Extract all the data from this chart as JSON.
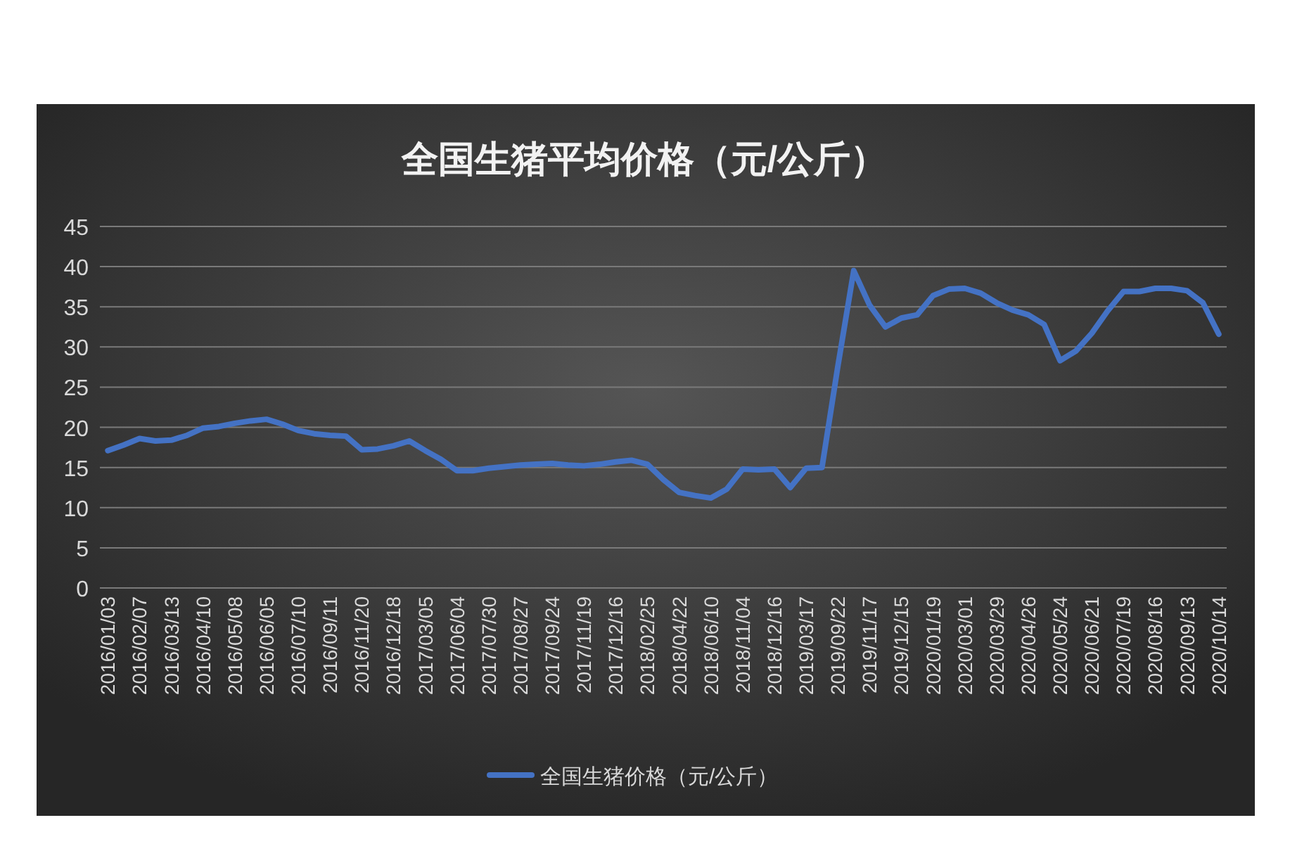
{
  "chart_data": {
    "type": "line",
    "title": "全国生猪平均价格（元/公斤）",
    "categories": [
      "2016/01/03",
      null,
      "2016/02/07",
      null,
      "2016/03/13",
      null,
      "2016/04/10",
      null,
      "2016/05/08",
      null,
      "2016/06/05",
      null,
      "2016/07/10",
      null,
      "2016/09/11",
      null,
      "2016/11/20",
      null,
      "2016/12/18",
      null,
      "2017/03/05",
      null,
      "2017/06/04",
      null,
      "2017/07/30",
      null,
      "2017/08/27",
      null,
      "2017/09/24",
      null,
      "2017/11/19",
      null,
      "2017/12/16",
      null,
      "2018/02/25",
      null,
      "2018/04/22",
      null,
      "2018/06/10",
      null,
      "2018/11/04",
      null,
      "2018/12/16",
      null,
      "2019/03/17",
      null,
      "2019/09/22",
      null,
      "2019/11/17",
      null,
      "2019/12/15",
      null,
      "2020/01/19",
      null,
      "2020/03/01",
      null,
      "2020/03/29",
      null,
      "2020/04/26",
      null,
      "2020/05/24",
      null,
      "2020/06/21",
      null,
      "2020/07/19",
      null,
      "2020/08/16",
      null,
      "2020/09/13",
      null,
      "2020/10/14"
    ],
    "series": [
      {
        "name": "全国生猪价格（元/公斤）",
        "color": "#4472c4",
        "values": [
          17.1,
          17.8,
          18.6,
          18.3,
          18.4,
          19.0,
          19.9,
          20.1,
          20.5,
          20.8,
          21.0,
          20.4,
          19.6,
          19.2,
          19.0,
          18.9,
          17.2,
          17.3,
          17.7,
          18.3,
          17.1,
          16.0,
          14.6,
          14.6,
          14.9,
          15.1,
          15.3,
          15.4,
          15.5,
          15.3,
          15.2,
          15.4,
          15.7,
          15.9,
          15.4,
          13.5,
          11.9,
          11.5,
          11.2,
          12.3,
          14.8,
          14.7,
          14.8,
          12.5,
          14.9,
          15.0,
          27.6,
          39.5,
          35.2,
          32.5,
          33.6,
          34.0,
          36.4,
          37.2,
          37.3,
          36.7,
          35.5,
          34.6,
          34.0,
          32.8,
          28.3,
          29.5,
          31.7,
          34.5,
          36.9,
          36.9,
          37.3,
          37.3,
          37.0,
          35.5,
          31.6
        ]
      }
    ],
    "ylim": [
      0,
      45
    ],
    "yticks": [
      0,
      5,
      10,
      15,
      20,
      25,
      30,
      35,
      40,
      45
    ],
    "grid": "y",
    "legend": "bottom"
  }
}
